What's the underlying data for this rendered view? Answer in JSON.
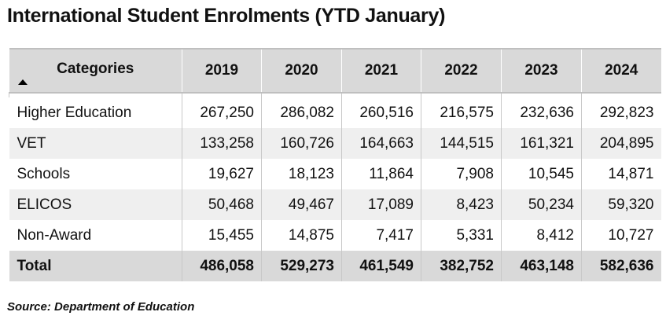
{
  "title": "International Student Enrolments (YTD January)",
  "source": "Source: Department of Education",
  "chart_data": {
    "type": "table",
    "title": "International Student Enrolments (YTD January)",
    "columns": [
      "Categories",
      "2019",
      "2020",
      "2021",
      "2022",
      "2023",
      "2024"
    ],
    "sort": {
      "column": "Categories",
      "direction": "ascending"
    },
    "rows": [
      {
        "label": "Higher Education",
        "values": [
          "267,250",
          "286,082",
          "260,516",
          "216,575",
          "232,636",
          "292,823"
        ]
      },
      {
        "label": "VET",
        "values": [
          "133,258",
          "160,726",
          "164,663",
          "144,515",
          "161,321",
          "204,895"
        ]
      },
      {
        "label": "Schools",
        "values": [
          "19,627",
          "18,123",
          "11,864",
          "7,908",
          "10,545",
          "14,871"
        ]
      },
      {
        "label": "ELICOS",
        "values": [
          "50,468",
          "49,467",
          "17,089",
          "8,423",
          "50,234",
          "59,320"
        ]
      },
      {
        "label": "Non-Award",
        "values": [
          "15,455",
          "14,875",
          "7,417",
          "5,331",
          "8,412",
          "10,727"
        ]
      }
    ],
    "total": {
      "label": "Total",
      "values": [
        "486,058",
        "529,273",
        "461,549",
        "382,752",
        "463,148",
        "582,636"
      ]
    },
    "source": "Source: Department of Education"
  }
}
